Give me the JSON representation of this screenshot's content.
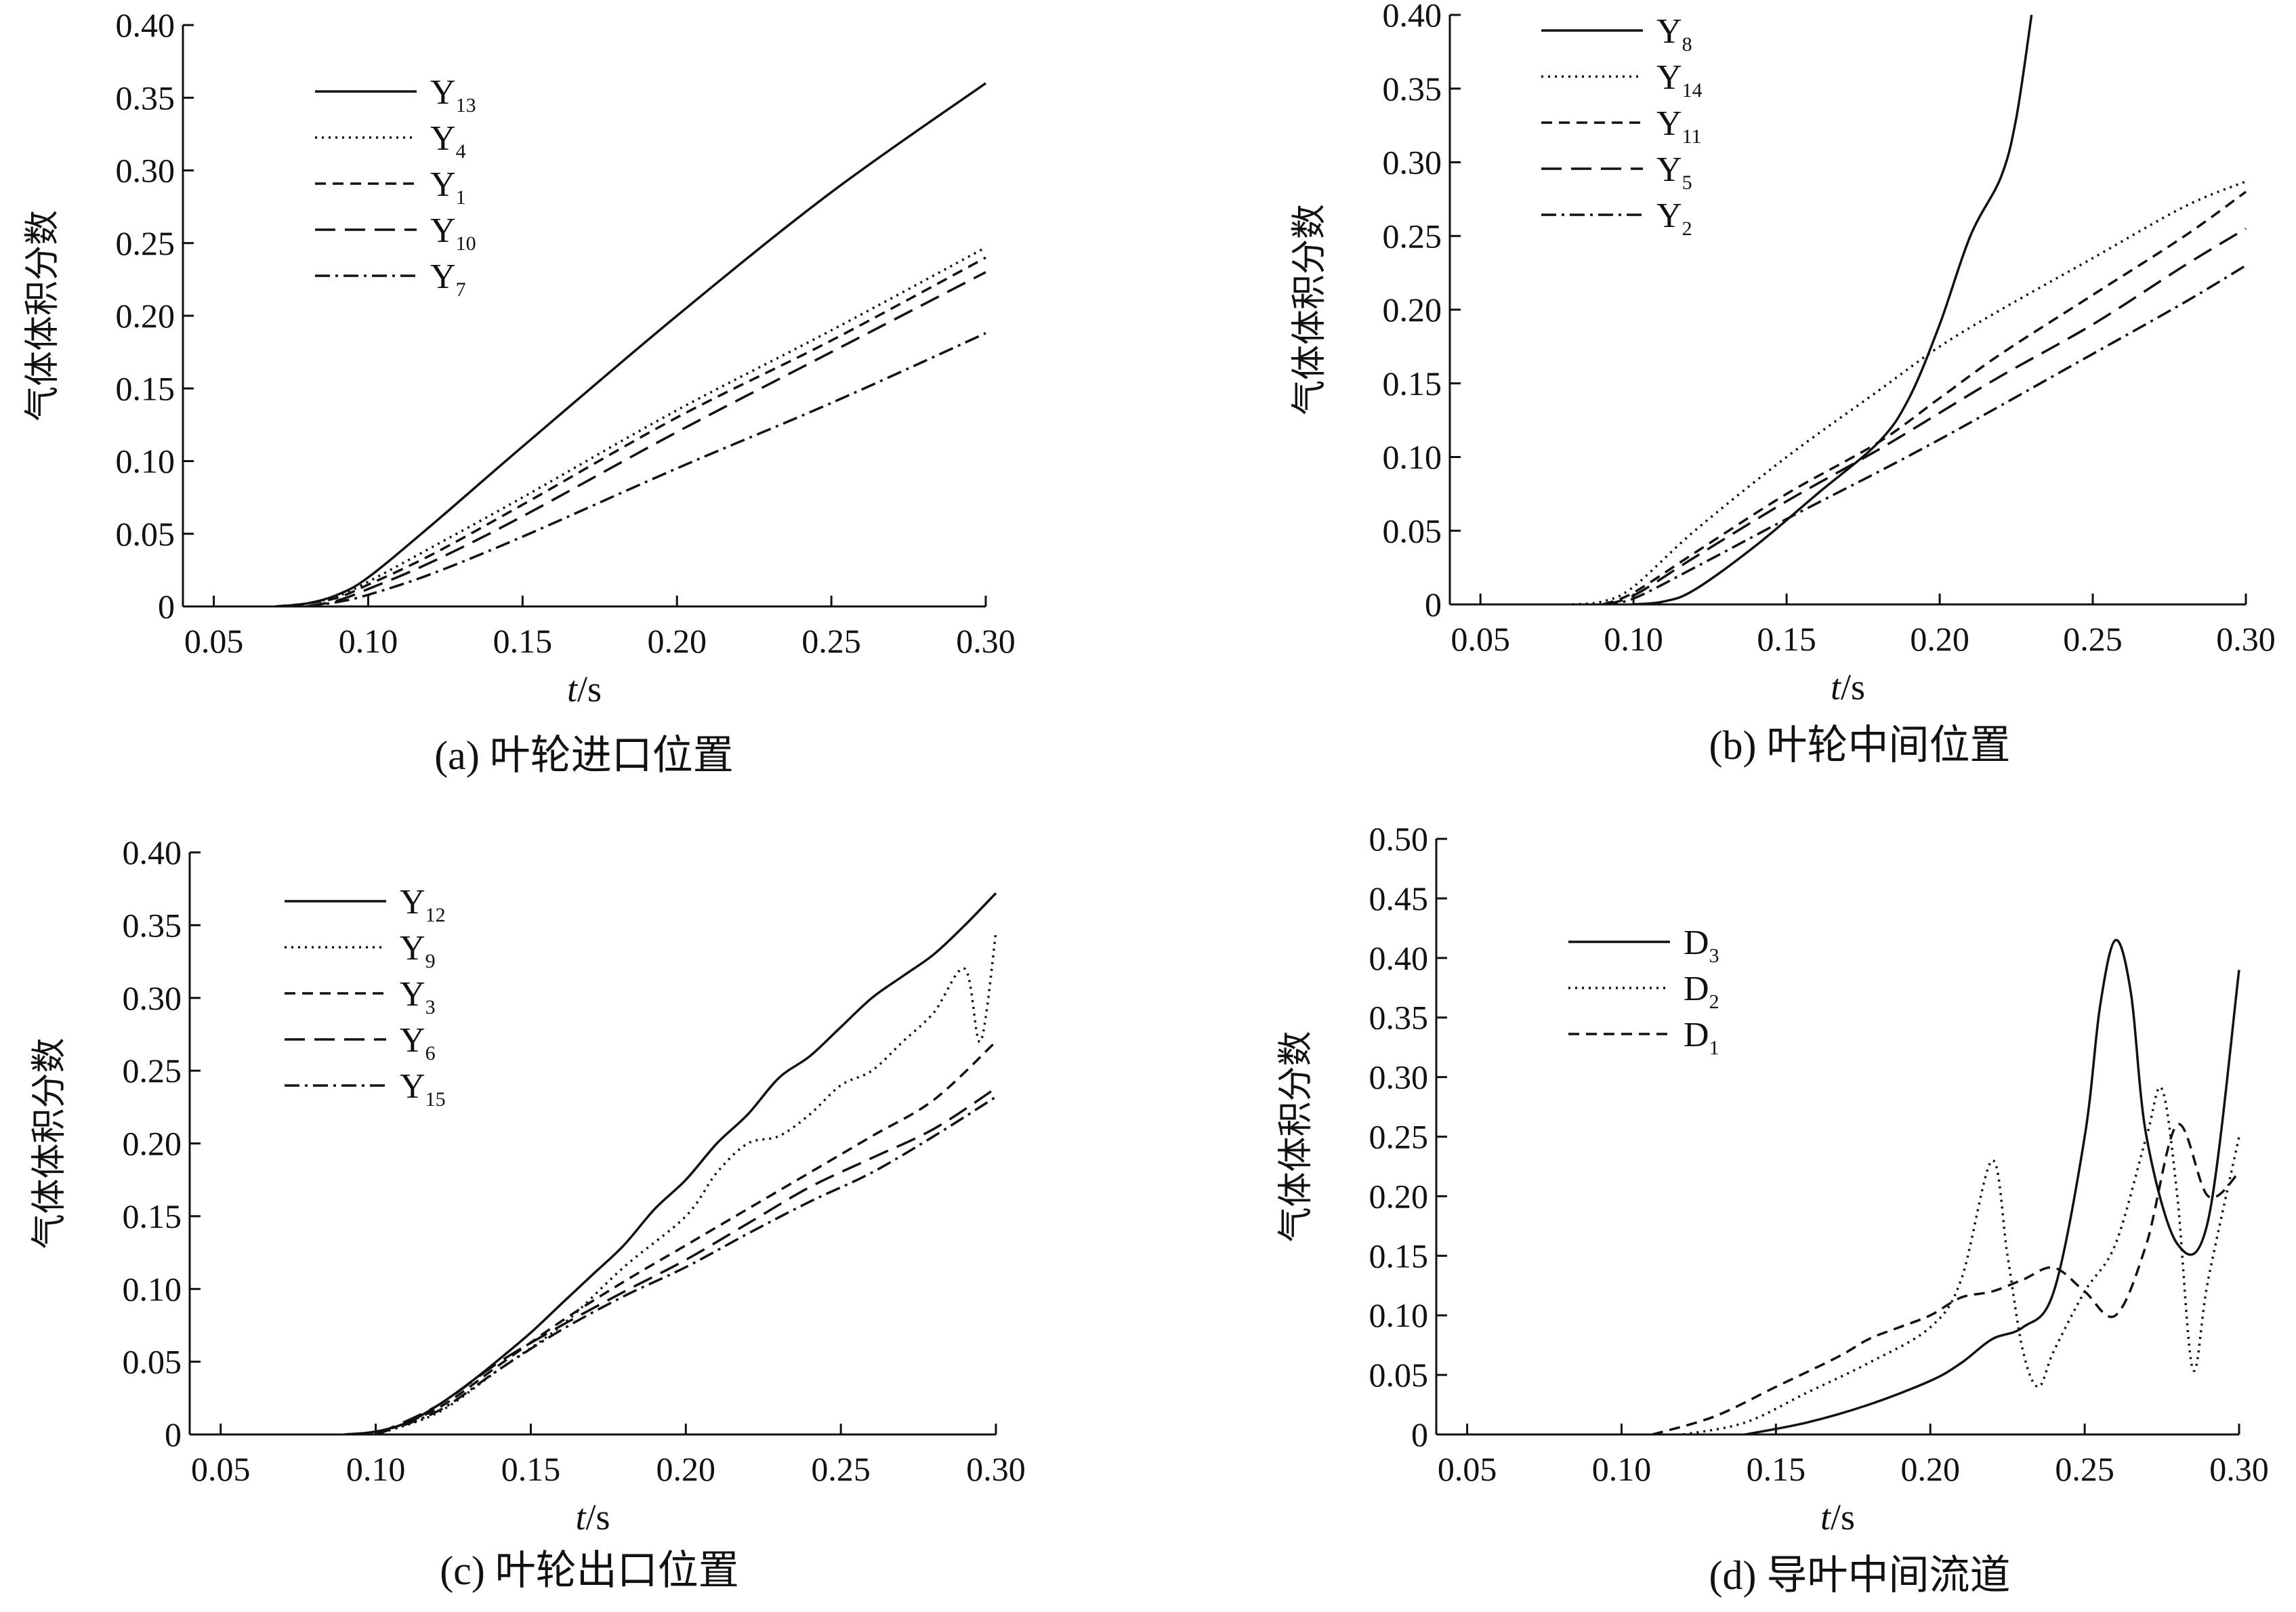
{
  "chart_data": [
    {
      "type": "line",
      "caption": "(a) 叶轮进口位置",
      "xlabel_italic": "t",
      "xlabel_unit": "/s",
      "ylabel": "气体体积分数",
      "xlim": [
        0.04,
        0.3
      ],
      "ylim": [
        0,
        0.4
      ],
      "xticks": [
        0.05,
        0.1,
        0.15,
        0.2,
        0.25,
        0.3
      ],
      "xtick_labels": [
        "0.05",
        "0.10",
        "0.15",
        "0.20",
        "0.25",
        "0.30"
      ],
      "yticks": [
        0,
        0.05,
        0.1,
        0.15,
        0.2,
        0.25,
        0.3,
        0.35,
        0.4
      ],
      "ytick_labels": [
        "0",
        "0.05",
        "0.10",
        "0.15",
        "0.20",
        "0.25",
        "0.30",
        "0.35",
        "0.40"
      ],
      "legend_position": "top-left",
      "series": [
        {
          "name": "Y",
          "sub": "13",
          "style": "solid",
          "x": [
            0.07,
            0.08,
            0.09,
            0.1,
            0.12,
            0.15,
            0.2,
            0.25,
            0.3
          ],
          "y": [
            0,
            0.002,
            0.008,
            0.02,
            0.055,
            0.11,
            0.2,
            0.285,
            0.36
          ]
        },
        {
          "name": "Y",
          "sub": "4",
          "style": "dotted",
          "x": [
            0.07,
            0.08,
            0.09,
            0.1,
            0.12,
            0.15,
            0.2,
            0.25,
            0.3
          ],
          "y": [
            0,
            0.002,
            0.007,
            0.017,
            0.04,
            0.075,
            0.135,
            0.19,
            0.247
          ]
        },
        {
          "name": "Y",
          "sub": "1",
          "style": "dashed",
          "x": [
            0.07,
            0.08,
            0.09,
            0.1,
            0.12,
            0.15,
            0.2,
            0.25,
            0.3
          ],
          "y": [
            0,
            0.002,
            0.006,
            0.015,
            0.035,
            0.07,
            0.13,
            0.183,
            0.24
          ]
        },
        {
          "name": "Y",
          "sub": "10",
          "style": "longdash",
          "x": [
            0.08,
            0.09,
            0.1,
            0.12,
            0.15,
            0.2,
            0.25,
            0.3
          ],
          "y": [
            0,
            0.004,
            0.012,
            0.03,
            0.062,
            0.12,
            0.175,
            0.23
          ]
        },
        {
          "name": "Y",
          "sub": "7",
          "style": "dashdot",
          "x": [
            0.08,
            0.09,
            0.1,
            0.12,
            0.15,
            0.2,
            0.25,
            0.3
          ],
          "y": [
            0,
            0.003,
            0.008,
            0.022,
            0.048,
            0.095,
            0.14,
            0.188
          ]
        }
      ]
    },
    {
      "type": "line",
      "caption": "(b) 叶轮中间位置",
      "xlabel_italic": "t",
      "xlabel_unit": "/s",
      "ylabel": "气体体积分数",
      "xlim": [
        0.04,
        0.3
      ],
      "ylim": [
        0,
        0.4
      ],
      "xticks": [
        0.05,
        0.1,
        0.15,
        0.2,
        0.25,
        0.3
      ],
      "xtick_labels": [
        "0.05",
        "0.10",
        "0.15",
        "0.20",
        "0.25",
        "0.30"
      ],
      "yticks": [
        0,
        0.05,
        0.1,
        0.15,
        0.2,
        0.25,
        0.3,
        0.35,
        0.4
      ],
      "ytick_labels": [
        "0",
        "0.05",
        "0.10",
        "0.15",
        "0.20",
        "0.25",
        "0.30",
        "0.35",
        "0.40"
      ],
      "legend_position": "top-left",
      "series": [
        {
          "name": "Y",
          "sub": "8",
          "style": "solid",
          "x": [
            0.1,
            0.11,
            0.12,
            0.14,
            0.16,
            0.18,
            0.19,
            0.2,
            0.21,
            0.22,
            0.225,
            0.23
          ],
          "y": [
            0,
            0.002,
            0.01,
            0.04,
            0.075,
            0.11,
            0.14,
            0.19,
            0.25,
            0.29,
            0.33,
            0.4
          ]
        },
        {
          "name": "Y",
          "sub": "14",
          "style": "dotted",
          "x": [
            0.08,
            0.09,
            0.1,
            0.12,
            0.15,
            0.18,
            0.2,
            0.22,
            0.25,
            0.28,
            0.3
          ],
          "y": [
            0,
            0.002,
            0.012,
            0.05,
            0.1,
            0.145,
            0.175,
            0.2,
            0.235,
            0.27,
            0.287
          ]
        },
        {
          "name": "Y",
          "sub": "11",
          "style": "dashed",
          "x": [
            0.09,
            0.1,
            0.12,
            0.15,
            0.18,
            0.2,
            0.22,
            0.25,
            0.28,
            0.3
          ],
          "y": [
            0,
            0.008,
            0.035,
            0.075,
            0.11,
            0.14,
            0.17,
            0.21,
            0.25,
            0.28
          ]
        },
        {
          "name": "Y",
          "sub": "5",
          "style": "longdash",
          "x": [
            0.09,
            0.1,
            0.12,
            0.15,
            0.18,
            0.2,
            0.22,
            0.25,
            0.28,
            0.3
          ],
          "y": [
            0,
            0.006,
            0.032,
            0.07,
            0.105,
            0.13,
            0.155,
            0.19,
            0.23,
            0.255
          ]
        },
        {
          "name": "Y",
          "sub": "2",
          "style": "dashdot",
          "x": [
            0.09,
            0.1,
            0.12,
            0.15,
            0.18,
            0.2,
            0.22,
            0.25,
            0.28,
            0.3
          ],
          "y": [
            0,
            0.004,
            0.025,
            0.058,
            0.09,
            0.112,
            0.135,
            0.17,
            0.205,
            0.23
          ]
        }
      ]
    },
    {
      "type": "line",
      "caption": "(c) 叶轮出口位置",
      "xlabel_italic": "t",
      "xlabel_unit": "/s",
      "ylabel": "气体体积分数",
      "xlim": [
        0.04,
        0.3
      ],
      "ylim": [
        0,
        0.4
      ],
      "xticks": [
        0.05,
        0.1,
        0.15,
        0.2,
        0.25,
        0.3
      ],
      "xtick_labels": [
        "0.05",
        "0.10",
        "0.15",
        "0.20",
        "0.25",
        "0.30"
      ],
      "yticks": [
        0,
        0.05,
        0.1,
        0.15,
        0.2,
        0.25,
        0.3,
        0.35,
        0.4
      ],
      "ytick_labels": [
        "0",
        "0.05",
        "0.10",
        "0.15",
        "0.20",
        "0.25",
        "0.30",
        "0.35",
        "0.40"
      ],
      "legend_position": "top-left",
      "series": [
        {
          "name": "Y",
          "sub": "12",
          "style": "solid",
          "x": [
            0.09,
            0.1,
            0.11,
            0.12,
            0.13,
            0.14,
            0.15,
            0.16,
            0.17,
            0.18,
            0.19,
            0.2,
            0.21,
            0.22,
            0.23,
            0.24,
            0.25,
            0.26,
            0.27,
            0.28,
            0.29,
            0.3
          ],
          "y": [
            0,
            0.002,
            0.008,
            0.02,
            0.035,
            0.052,
            0.07,
            0.09,
            0.11,
            0.13,
            0.155,
            0.175,
            0.2,
            0.22,
            0.245,
            0.26,
            0.28,
            0.3,
            0.315,
            0.33,
            0.35,
            0.372
          ]
        },
        {
          "name": "Y",
          "sub": "9",
          "style": "dotted",
          "x": [
            0.1,
            0.12,
            0.14,
            0.16,
            0.18,
            0.2,
            0.21,
            0.22,
            0.23,
            0.24,
            0.25,
            0.26,
            0.27,
            0.28,
            0.29,
            0.295,
            0.3
          ],
          "y": [
            0,
            0.015,
            0.045,
            0.075,
            0.115,
            0.15,
            0.18,
            0.2,
            0.205,
            0.22,
            0.24,
            0.25,
            0.27,
            0.29,
            0.32,
            0.27,
            0.345
          ]
        },
        {
          "name": "Y",
          "sub": "3",
          "style": "dashed",
          "x": [
            0.1,
            0.12,
            0.14,
            0.16,
            0.18,
            0.2,
            0.22,
            0.24,
            0.26,
            0.28,
            0.3
          ],
          "y": [
            0,
            0.018,
            0.048,
            0.078,
            0.105,
            0.13,
            0.155,
            0.18,
            0.205,
            0.23,
            0.27
          ]
        },
        {
          "name": "Y",
          "sub": "6",
          "style": "longdash",
          "x": [
            0.1,
            0.12,
            0.14,
            0.16,
            0.18,
            0.2,
            0.22,
            0.24,
            0.26,
            0.28,
            0.3
          ],
          "y": [
            0,
            0.02,
            0.05,
            0.075,
            0.098,
            0.12,
            0.145,
            0.17,
            0.19,
            0.21,
            0.238
          ]
        },
        {
          "name": "Y",
          "sub": "15",
          "style": "dashdot",
          "x": [
            0.1,
            0.12,
            0.14,
            0.16,
            0.18,
            0.2,
            0.22,
            0.24,
            0.26,
            0.28,
            0.3
          ],
          "y": [
            0,
            0.016,
            0.045,
            0.072,
            0.095,
            0.115,
            0.138,
            0.16,
            0.18,
            0.205,
            0.232
          ]
        }
      ]
    },
    {
      "type": "line",
      "caption": "(d) 导叶中间流道",
      "xlabel_italic": "t",
      "xlabel_unit": "/s",
      "ylabel": "气体体积分数",
      "xlim": [
        0.04,
        0.3
      ],
      "ylim": [
        0,
        0.5
      ],
      "xticks": [
        0.05,
        0.1,
        0.15,
        0.2,
        0.25,
        0.3
      ],
      "xtick_labels": [
        "0.05",
        "0.10",
        "0.15",
        "0.20",
        "0.25",
        "0.30"
      ],
      "yticks": [
        0,
        0.05,
        0.1,
        0.15,
        0.2,
        0.25,
        0.3,
        0.35,
        0.4,
        0.45,
        0.5
      ],
      "ytick_labels": [
        "0",
        "0.05",
        "0.10",
        "0.15",
        "0.20",
        "0.25",
        "0.30",
        "0.35",
        "0.40",
        "0.45",
        "0.50"
      ],
      "legend_position": "top-left",
      "series": [
        {
          "name": "D",
          "sub": "3",
          "style": "solid",
          "x": [
            0.14,
            0.16,
            0.18,
            0.2,
            0.21,
            0.22,
            0.23,
            0.24,
            0.25,
            0.255,
            0.26,
            0.265,
            0.27,
            0.28,
            0.29,
            0.3
          ],
          "y": [
            0,
            0.01,
            0.025,
            0.045,
            0.06,
            0.08,
            0.09,
            0.12,
            0.25,
            0.36,
            0.415,
            0.37,
            0.25,
            0.16,
            0.18,
            0.39
          ]
        },
        {
          "name": "D",
          "sub": "2",
          "style": "dotted",
          "x": [
            0.12,
            0.14,
            0.16,
            0.18,
            0.2,
            0.21,
            0.22,
            0.225,
            0.23,
            0.235,
            0.24,
            0.25,
            0.26,
            0.27,
            0.275,
            0.28,
            0.285,
            0.29,
            0.3
          ],
          "y": [
            0,
            0.01,
            0.035,
            0.06,
            0.09,
            0.13,
            0.23,
            0.15,
            0.07,
            0.04,
            0.07,
            0.12,
            0.16,
            0.25,
            0.29,
            0.2,
            0.055,
            0.13,
            0.25
          ]
        },
        {
          "name": "D",
          "sub": "1",
          "style": "dashed",
          "x": [
            0.11,
            0.13,
            0.15,
            0.17,
            0.18,
            0.19,
            0.2,
            0.21,
            0.22,
            0.23,
            0.24,
            0.25,
            0.26,
            0.27,
            0.28,
            0.29,
            0.3
          ],
          "y": [
            0,
            0.015,
            0.04,
            0.065,
            0.08,
            0.09,
            0.1,
            0.115,
            0.12,
            0.13,
            0.14,
            0.12,
            0.1,
            0.16,
            0.26,
            0.2,
            0.22
          ]
        }
      ]
    }
  ]
}
